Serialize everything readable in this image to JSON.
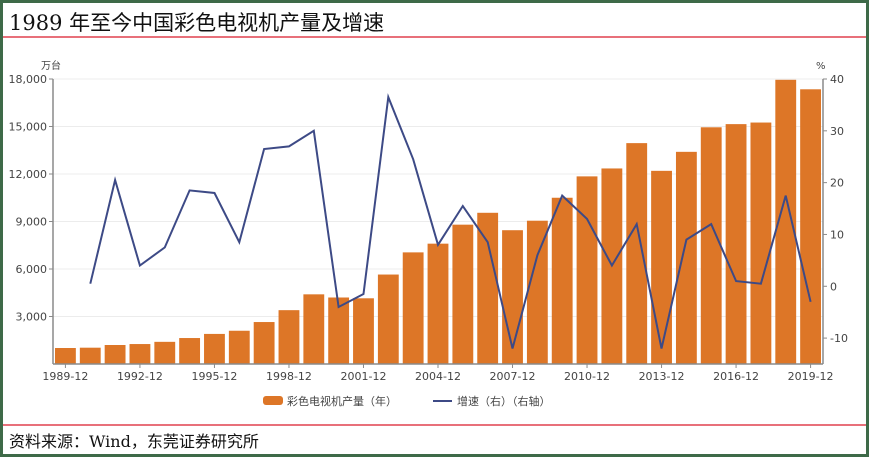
{
  "title": "1989 年至今中国彩色电视机产量及增速",
  "source": "资料来源：Wind，东莞证券研究所",
  "colors": {
    "bar": "#dd7627",
    "line": "#3d4a86",
    "rule": "#e8707a",
    "grid": "#ececec",
    "axis": "#8a8a8a",
    "text": "#444444"
  },
  "chart_data": {
    "type": "bar+line",
    "title": "1989 年至今中国彩色电视机产量及增速",
    "left_axis": {
      "unit": "万台",
      "ticks": [
        "3,000",
        "6,000",
        "9,000",
        "12,000",
        "15,000",
        "18,000"
      ],
      "range": [
        0,
        18000
      ]
    },
    "right_axis": {
      "unit": "%",
      "ticks": [
        "-10",
        "0",
        "10",
        "20",
        "30",
        "40"
      ],
      "range": [
        -15,
        40
      ]
    },
    "x_tick_labels": [
      "1989-12",
      "1992-12",
      "1995-12",
      "1998-12",
      "2001-12",
      "2004-12",
      "2007-12",
      "2010-12",
      "2013-12",
      "2016-12",
      "2019-12"
    ],
    "categories": [
      "1989",
      "1990",
      "1991",
      "1992",
      "1993",
      "1994",
      "1995",
      "1996",
      "1997",
      "1998",
      "1999",
      "2000",
      "2001",
      "2002",
      "2003",
      "2004",
      "2005",
      "2006",
      "2007",
      "2008",
      "2009",
      "2010",
      "2011",
      "2012",
      "2013",
      "2014",
      "2015",
      "2016",
      "2017",
      "2018",
      "2019"
    ],
    "series": [
      {
        "name": "彩色电视机产量（年）",
        "type": "bar",
        "axis": "left",
        "values": [
          1010,
          1030,
          1200,
          1260,
          1400,
          1640,
          1900,
          2100,
          2650,
          3400,
          4400,
          4200,
          4150,
          5650,
          7050,
          7600,
          8800,
          9550,
          8450,
          9050,
          10500,
          11850,
          12350,
          13950,
          12200,
          13400,
          14950,
          15150,
          15250,
          17950,
          17350
        ]
      },
      {
        "name": "增速（右）(右轴)",
        "type": "line",
        "axis": "right",
        "values": [
          null,
          0.5,
          20.5,
          4,
          7.5,
          18.5,
          18,
          8.5,
          26.5,
          27,
          30,
          -4,
          -1.5,
          36.5,
          24.5,
          8,
          15.5,
          8.5,
          -12,
          6,
          17.5,
          13,
          4,
          12,
          -12,
          9,
          12,
          1,
          0.5,
          17.5,
          -3
        ]
      }
    ],
    "legend": [
      "彩色电视机产量（年）",
      "增速（右）（右轴）"
    ],
    "legend_position": "bottom",
    "grid": true
  }
}
